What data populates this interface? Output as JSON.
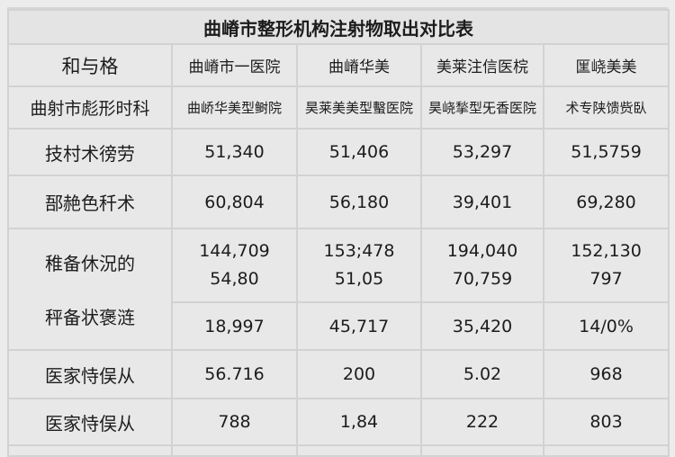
{
  "title": "曲嵴市整形机构注射物取出对比表",
  "header_row1": [
    "和与格",
    "曲嵴市一医院",
    "曲嵴华美",
    "美莱注信医梡",
    "匩峣美美"
  ],
  "header_row2": [
    "曲射市彪形时科",
    "曲峤华美型鲥院",
    "昊莱美美型蟿医院",
    "昊峣揫型旡香医院",
    "术专陕馈赀臥"
  ],
  "row1": {
    "label": "技村术徬劳",
    "values": [
      "51,340",
      "51,406",
      "53,297",
      "51,5759"
    ]
  },
  "row2": {
    "label": "郚赩色䄭术",
    "values": [
      "60,804",
      "56,180",
      "39,401",
      "69,280"
    ]
  },
  "row3": {
    "labels": [
      "稚备休況的",
      "秤备状褒涟"
    ],
    "values_top": [
      "144,709",
      "153;478",
      "194,040",
      "152,130"
    ],
    "values_mid": [
      "54,80",
      "51,05",
      "70,759",
      "797"
    ],
    "values_bottom": [
      "18,997",
      "45,717",
      "35,420",
      "14/0%"
    ]
  },
  "row4": {
    "label": "医家恃俣从",
    "values": [
      "56.716",
      "200",
      "5.02",
      "968"
    ]
  },
  "row5": {
    "label": "医家恃俣从",
    "values": [
      "788",
      "1,84",
      "222",
      "803"
    ]
  }
}
